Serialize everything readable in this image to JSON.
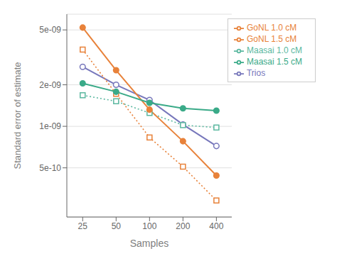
{
  "chart_data": {
    "type": "line",
    "x_label": "Samples",
    "y_label": "Standard error of estimate",
    "x": [
      25,
      50,
      100,
      200,
      400
    ],
    "series": [
      {
        "name": "Trios",
        "color": "#7777bb",
        "marker": "open_circle",
        "line_style": "solid",
        "values": [
          2.7e-09,
          2e-09,
          1.55e-09,
          1.03e-09,
          7.2e-10
        ]
      },
      {
        "name": "GoNL 1.0 cM",
        "color": "#e8823a",
        "marker": "open_square",
        "line_style": "dotted",
        "values": [
          3.6e-09,
          1.72e-09,
          8.3e-10,
          5.1e-10,
          2.9e-10
        ]
      },
      {
        "name": "Maasai 1.0 cM",
        "color": "#5bb8a0",
        "marker": "open_square",
        "line_style": "dotted",
        "values": [
          1.68e-09,
          1.52e-09,
          1.25e-09,
          1.02e-09,
          9.8e-10
        ]
      },
      {
        "name": "GoNL 1.5 cM",
        "color": "#e8823a",
        "marker": "circle",
        "line_style": "solid",
        "values": [
          5.2e-09,
          2.55e-09,
          1.32e-09,
          7.8e-10,
          4.4e-10
        ]
      },
      {
        "name": "Maasai 1.5 cM",
        "color": "#3aaa88",
        "marker": "circle",
        "line_style": "solid",
        "values": [
          2.05e-09,
          1.78e-09,
          1.48e-09,
          1.35e-09,
          1.3e-09
        ]
      }
    ],
    "log": true,
    "xlim": [
      18,
      550
    ],
    "xticks": [
      25,
      50,
      100,
      200,
      400
    ],
    "ylim": [
      2.2e-10,
      6.5e-09
    ],
    "yticks": [
      {
        "value": 5e-10,
        "label": "5e-10"
      },
      {
        "value": 1e-09,
        "label": "1e-09"
      },
      {
        "value": 2e-09,
        "label": "2e-09"
      },
      {
        "value": 5e-09,
        "label": "5e-09"
      }
    ],
    "grid": true,
    "legend": "upper right"
  }
}
